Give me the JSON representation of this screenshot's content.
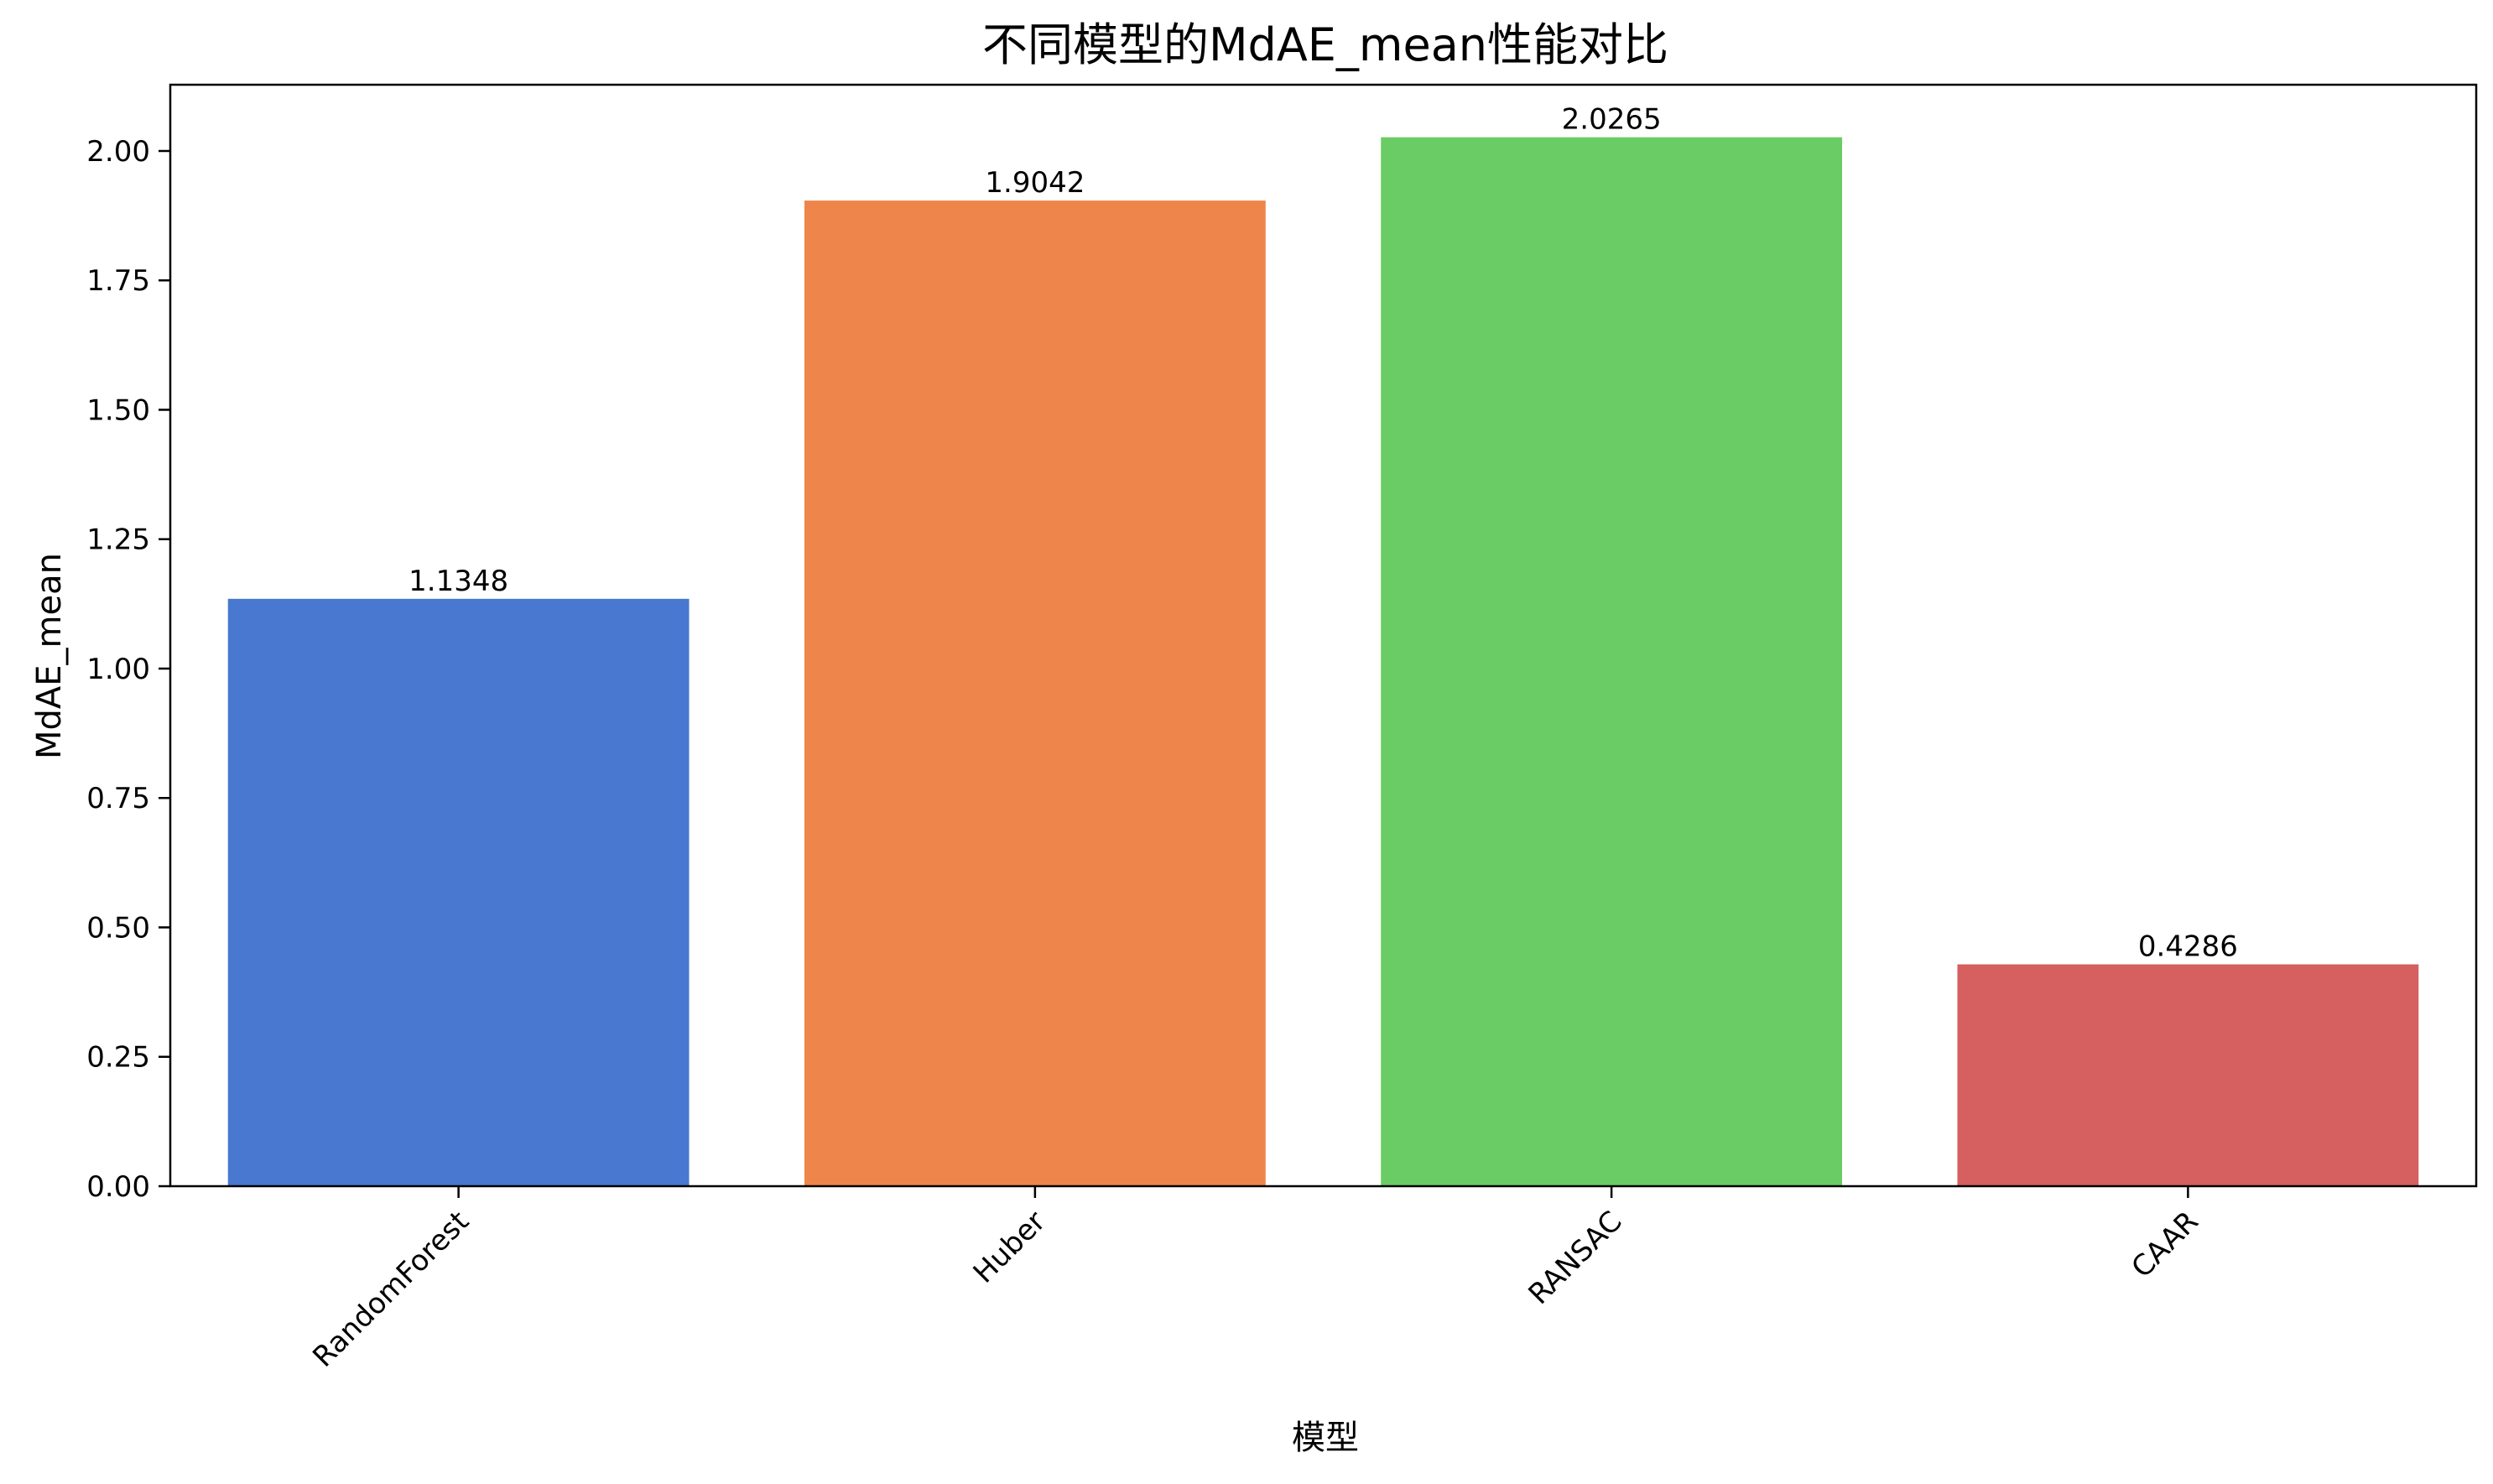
{
  "chart_data": {
    "type": "bar",
    "title": "不同模型的MdAE_mean性能对比",
    "xlabel": "模型",
    "ylabel": "MdAE_mean",
    "categories": [
      "RandomForest",
      "Huber",
      "RANSAC",
      "CAAR"
    ],
    "values": [
      1.1348,
      1.9042,
      2.0265,
      0.4286
    ],
    "value_labels": [
      "1.1348",
      "1.9042",
      "2.0265",
      "0.4286"
    ],
    "colors": [
      "#4878cf",
      "#ee854a",
      "#6acc64",
      "#d65f5f"
    ],
    "ylim": [
      0,
      2.128
    ],
    "yticks": [
      0,
      0.25,
      0.5,
      0.75,
      1.0,
      1.25,
      1.5,
      1.75,
      2.0
    ],
    "ytick_labels": [
      "0.00",
      "0.25",
      "0.50",
      "0.75",
      "1.00",
      "1.25",
      "1.50",
      "1.75",
      "2.00"
    ],
    "grid": false,
    "legend": "none"
  }
}
